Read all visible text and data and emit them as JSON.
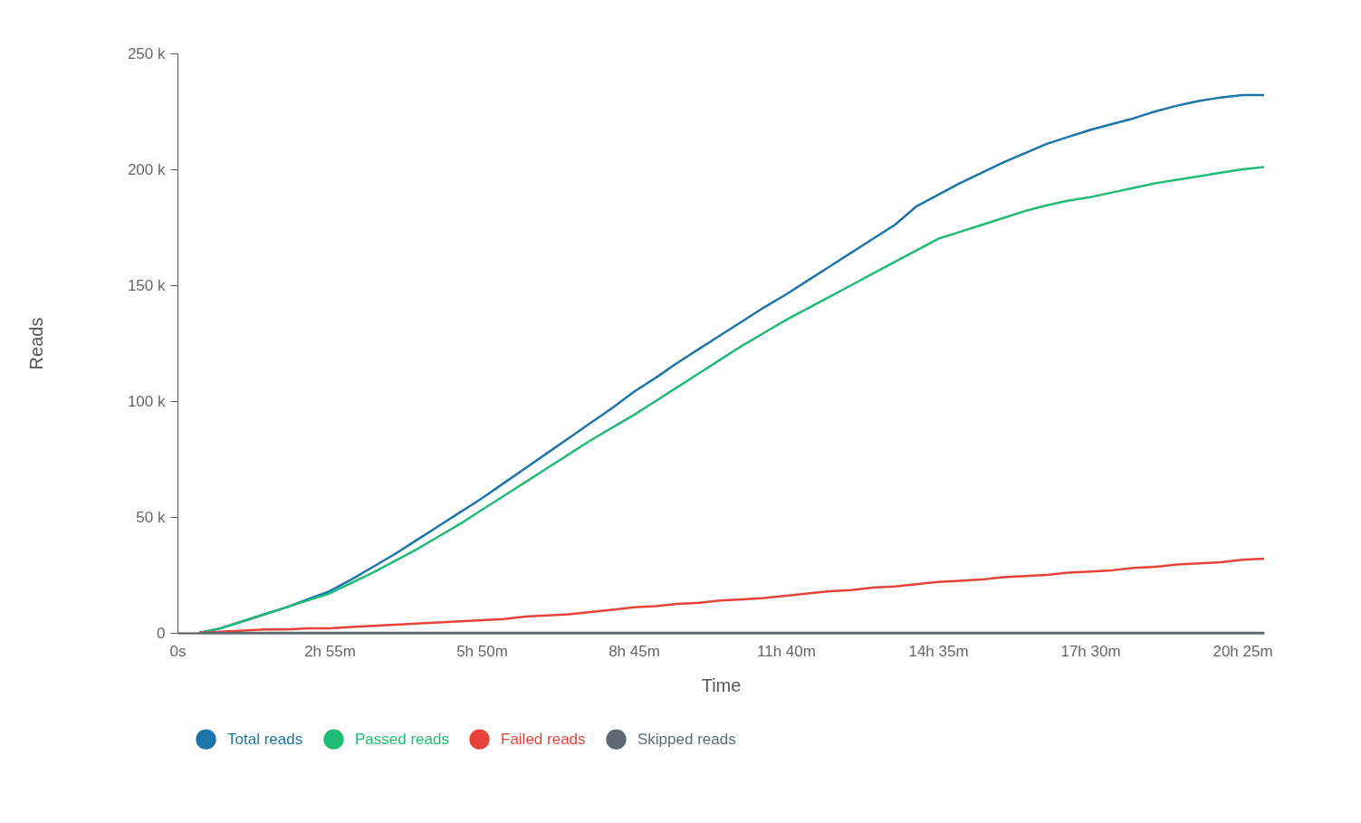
{
  "chart_data": {
    "type": "line",
    "xlabel": "Time",
    "ylabel": "Reads",
    "categories": [
      "0s",
      null,
      null,
      null,
      null,
      null,
      null,
      "2h 55m",
      null,
      null,
      null,
      null,
      null,
      null,
      "5h 50m",
      null,
      null,
      null,
      null,
      null,
      null,
      "8h 45m",
      null,
      null,
      null,
      null,
      null,
      null,
      "11h 40m",
      null,
      null,
      null,
      null,
      null,
      null,
      "14h 35m",
      null,
      null,
      null,
      null,
      null,
      null,
      "17h 30m",
      null,
      null,
      null,
      null,
      null,
      null,
      "20h 25m",
      null
    ],
    "series": [
      {
        "name": "Total reads",
        "color": "#1b75a8",
        "values": [
          null,
          0,
          2,
          5,
          8,
          11,
          14.5,
          18,
          23,
          28.5,
          34,
          40,
          46,
          52,
          58,
          64.5,
          71,
          77.5,
          84,
          90.5,
          97,
          104,
          110,
          116.5,
          122.5,
          128.5,
          134.5,
          140.5,
          146,
          152,
          158,
          164,
          170,
          176,
          184,
          189,
          194,
          198.5,
          203,
          207,
          211,
          214,
          217,
          219.5,
          222,
          225,
          227.5,
          229.5,
          231,
          232,
          232
        ]
      },
      {
        "name": "Passed reads",
        "color": "#20bb75",
        "values": [
          null,
          0,
          2,
          5,
          8,
          11,
          14,
          17,
          21.5,
          26,
          31,
          36,
          41.5,
          47,
          53,
          59,
          65,
          71,
          77,
          83,
          88.5,
          94,
          100,
          106,
          112,
          118,
          124,
          129.5,
          135,
          140,
          145,
          150,
          155,
          160,
          165,
          170,
          173,
          176,
          179,
          182,
          184.5,
          186.5,
          188,
          190,
          192,
          194,
          195.5,
          197,
          198.5,
          200,
          201
        ]
      },
      {
        "name": "Failed reads",
        "color": "#e8433b",
        "values": [
          null,
          0,
          0.5,
          1,
          1.5,
          1.5,
          2,
          2,
          2.5,
          3,
          3.5,
          4,
          4.5,
          5,
          5.5,
          6,
          7,
          7.5,
          8,
          9,
          10,
          11,
          11.5,
          12.5,
          13,
          14,
          14.5,
          15,
          16,
          17,
          18,
          18.5,
          19.5,
          20,
          21,
          22,
          22.5,
          23,
          24,
          24.5,
          25,
          26,
          26.5,
          27,
          28,
          28.5,
          29.5,
          30,
          30.5,
          31.5,
          32
        ]
      },
      {
        "name": "Skipped reads",
        "color": "#5e6a72",
        "values": [
          null,
          0,
          0,
          0,
          0,
          0,
          0,
          0,
          0,
          0,
          0,
          0,
          0,
          0,
          0,
          0,
          0,
          0,
          0,
          0,
          0,
          0,
          0,
          0,
          0,
          0,
          0,
          0,
          0,
          0,
          0,
          0,
          0,
          0,
          0,
          0,
          0,
          0,
          0,
          0,
          0,
          0,
          0,
          0,
          0,
          0,
          0,
          0,
          0,
          0,
          0
        ]
      }
    ],
    "ylim": [
      0,
      250
    ],
    "yticks": [
      0,
      {
        "value": 50,
        "label": "50 k"
      },
      {
        "value": 100,
        "label": "100 k"
      },
      {
        "value": 150,
        "label": "150 k"
      },
      {
        "value": 200,
        "label": "200 k"
      },
      {
        "value": 250,
        "label": "250 k"
      }
    ],
    "grid": false,
    "legend": "bottom",
    "marker": "none",
    "line_style": "solid"
  }
}
